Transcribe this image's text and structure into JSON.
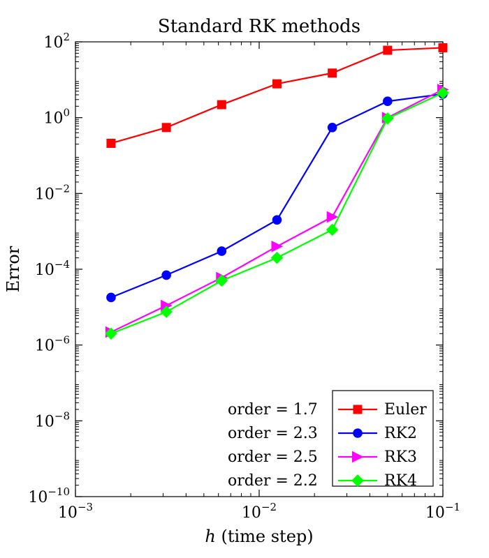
{
  "chart_data": {
    "type": "line",
    "title": "Standard RK methods",
    "xlabel_var": "h",
    "xlabel_rest": " (time step)",
    "ylabel": "Error",
    "xscale": "log",
    "yscale": "log",
    "xlim": [
      0.001,
      0.1
    ],
    "ylim": [
      1e-10,
      100
    ],
    "grid": false,
    "legend_position": "bottom-right",
    "x_ticks": [
      {
        "value": 0.001,
        "base": "10",
        "exp": "−3"
      },
      {
        "value": 0.01,
        "base": "10",
        "exp": "−2"
      },
      {
        "value": 0.1,
        "base": "10",
        "exp": "−1"
      }
    ],
    "y_ticks": [
      {
        "value": 100,
        "base": "10",
        "exp": "2"
      },
      {
        "value": 1,
        "base": "10",
        "exp": "0"
      },
      {
        "value": 0.01,
        "base": "10",
        "exp": "−2"
      },
      {
        "value": 0.0001,
        "base": "10",
        "exp": "−4"
      },
      {
        "value": 1e-06,
        "base": "10",
        "exp": "−6"
      },
      {
        "value": 1e-08,
        "base": "10",
        "exp": "−8"
      },
      {
        "value": 1e-10,
        "base": "10",
        "exp": "−10"
      }
    ],
    "x": [
      0.0015625,
      0.003125,
      0.00625,
      0.0125,
      0.025,
      0.05,
      0.1
    ],
    "series": [
      {
        "name": "Euler",
        "color": "#ff0000",
        "marker": "square",
        "values": [
          0.21,
          0.55,
          2.2,
          7.8,
          15,
          60,
          70
        ]
      },
      {
        "name": "RK2",
        "color": "#0000ff",
        "marker": "circle",
        "values": [
          1.8e-05,
          7e-05,
          0.0003,
          0.002,
          0.55,
          2.7,
          4.2
        ]
      },
      {
        "name": "RK3",
        "color": "#ff00ff",
        "marker": "triangle-right",
        "values": [
          2.2e-06,
          1.1e-05,
          6e-05,
          0.0004,
          0.0024,
          1.0,
          5.5
        ]
      },
      {
        "name": "RK4",
        "color": "#00ff00",
        "marker": "diamond",
        "values": [
          2e-06,
          7.5e-06,
          5e-05,
          0.0002,
          0.0011,
          0.95,
          4.5
        ]
      }
    ],
    "annotations": [
      "order = 1.7",
      "order = 2.3",
      "order = 2.5",
      "order = 2.2"
    ]
  }
}
